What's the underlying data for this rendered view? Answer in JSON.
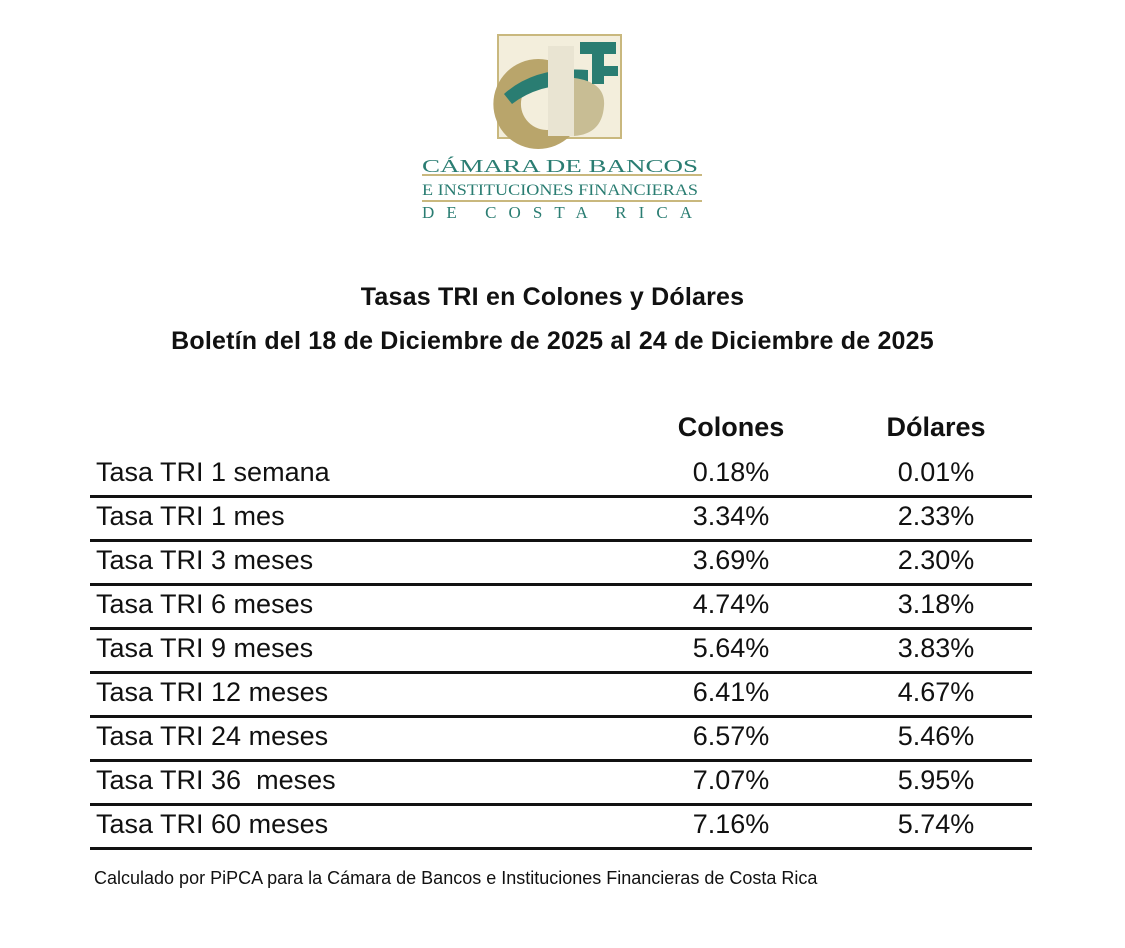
{
  "logo": {
    "lines": [
      "CÁMARA DE BANCOS",
      "E INSTITUCIONES FINANCIERAS",
      "DE COSTA RICA"
    ],
    "colors": {
      "gold": "#b9a56b",
      "teal": "#2a7d72",
      "frame": "#c9b87e"
    }
  },
  "title": {
    "line1": "Tasas TRI en Colones y Dólares",
    "line2": "Boletín del 18 de Diciembre de 2025 al 24 de Diciembre de 2025"
  },
  "table": {
    "headers": {
      "colones": "Colones",
      "dolares": "Dólares"
    },
    "rows": [
      {
        "label": "Tasa TRI 1 semana",
        "colones": "0.18%",
        "dolares": "0.01%"
      },
      {
        "label": "Tasa TRI 1 mes",
        "colones": "3.34%",
        "dolares": "2.33%"
      },
      {
        "label": "Tasa TRI 3 meses",
        "colones": "3.69%",
        "dolares": "2.30%"
      },
      {
        "label": "Tasa TRI 6 meses",
        "colones": "4.74%",
        "dolares": "3.18%"
      },
      {
        "label": "Tasa TRI 9 meses",
        "colones": "5.64%",
        "dolares": "3.83%"
      },
      {
        "label": "Tasa TRI 12 meses",
        "colones": "6.41%",
        "dolares": "4.67%"
      },
      {
        "label": "Tasa TRI 24 meses",
        "colones": "6.57%",
        "dolares": "5.46%"
      },
      {
        "label": "Tasa TRI 36  meses",
        "colones": "7.07%",
        "dolares": "5.95%"
      },
      {
        "label": "Tasa TRI 60 meses",
        "colones": "7.16%",
        "dolares": "5.74%"
      }
    ]
  },
  "footnote": "Calculado por PiPCA para la Cámara de Bancos e Instituciones Financieras de Costa Rica"
}
